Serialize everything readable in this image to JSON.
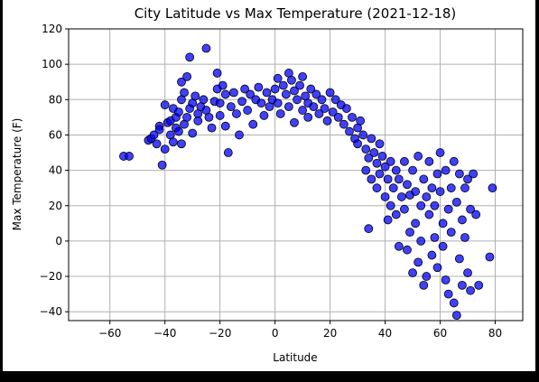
{
  "chart_data": {
    "type": "scatter",
    "title": "City Latitude vs Max Temperature  (2021-12-18)",
    "xlabel": "Latitude",
    "ylabel": "Max Temperature (F)",
    "xlim": [
      -75,
      90
    ],
    "ylim": [
      -45,
      120
    ],
    "xticks": [
      -60,
      -40,
      -20,
      0,
      20,
      40,
      60,
      80
    ],
    "yticks": [
      -40,
      -20,
      0,
      20,
      40,
      60,
      80,
      100,
      120
    ],
    "grid": true,
    "marker_color": "#0000ff",
    "edge_color": "#000000",
    "series": [
      {
        "points": [
          [
            -55,
            48
          ],
          [
            -53,
            48
          ],
          [
            -46,
            57
          ],
          [
            -45,
            58
          ],
          [
            -44,
            60
          ],
          [
            -43,
            55
          ],
          [
            -42,
            65
          ],
          [
            -42,
            63
          ],
          [
            -41,
            43
          ],
          [
            -40,
            52
          ],
          [
            -40,
            77
          ],
          [
            -39,
            67
          ],
          [
            -38,
            60
          ],
          [
            -38,
            68
          ],
          [
            -37,
            75
          ],
          [
            -37,
            56
          ],
          [
            -36,
            64
          ],
          [
            -36,
            70
          ],
          [
            -35,
            73
          ],
          [
            -35,
            62
          ],
          [
            -34,
            55
          ],
          [
            -34,
            80
          ],
          [
            -34,
            90
          ],
          [
            -33,
            66
          ],
          [
            -33,
            84
          ],
          [
            -32,
            93
          ],
          [
            -32,
            70
          ],
          [
            -31,
            104
          ],
          [
            -31,
            75
          ],
          [
            -30,
            61
          ],
          [
            -30,
            78
          ],
          [
            -29,
            82
          ],
          [
            -28,
            72
          ],
          [
            -28,
            68
          ],
          [
            -27,
            76
          ],
          [
            -26,
            80
          ],
          [
            -25,
            109
          ],
          [
            -25,
            74
          ],
          [
            -24,
            70
          ],
          [
            -23,
            64
          ],
          [
            -22,
            79
          ],
          [
            -21,
            95
          ],
          [
            -21,
            86
          ],
          [
            -20,
            78
          ],
          [
            -20,
            71
          ],
          [
            -19,
            88
          ],
          [
            -18,
            83
          ],
          [
            -18,
            65
          ],
          [
            -17,
            50
          ],
          [
            -16,
            76
          ],
          [
            -15,
            84
          ],
          [
            -14,
            72
          ],
          [
            -13,
            60
          ],
          [
            -12,
            79
          ],
          [
            -11,
            86
          ],
          [
            -10,
            74
          ],
          [
            -9,
            83
          ],
          [
            -8,
            66
          ],
          [
            -7,
            80
          ],
          [
            -6,
            87
          ],
          [
            -5,
            78
          ],
          [
            -4,
            71
          ],
          [
            -3,
            84
          ],
          [
            -2,
            76
          ],
          [
            -1,
            80
          ],
          [
            0,
            86
          ],
          [
            1,
            92
          ],
          [
            1,
            78
          ],
          [
            2,
            72
          ],
          [
            3,
            88
          ],
          [
            4,
            83
          ],
          [
            5,
            95
          ],
          [
            5,
            76
          ],
          [
            6,
            91
          ],
          [
            7,
            85
          ],
          [
            7,
            67
          ],
          [
            8,
            80
          ],
          [
            9,
            88
          ],
          [
            10,
            74
          ],
          [
            10,
            93
          ],
          [
            11,
            82
          ],
          [
            12,
            78
          ],
          [
            12,
            70
          ],
          [
            13,
            86
          ],
          [
            14,
            76
          ],
          [
            15,
            83
          ],
          [
            16,
            72
          ],
          [
            17,
            80
          ],
          [
            18,
            75
          ],
          [
            19,
            68
          ],
          [
            20,
            84
          ],
          [
            21,
            73
          ],
          [
            22,
            80
          ],
          [
            23,
            70
          ],
          [
            24,
            77
          ],
          [
            25,
            66
          ],
          [
            26,
            75
          ],
          [
            27,
            62
          ],
          [
            28,
            70
          ],
          [
            29,
            58
          ],
          [
            30,
            64
          ],
          [
            30,
            55
          ],
          [
            31,
            68
          ],
          [
            32,
            60
          ],
          [
            33,
            52
          ],
          [
            33,
            40
          ],
          [
            34,
            7
          ],
          [
            34,
            47
          ],
          [
            35,
            58
          ],
          [
            35,
            35
          ],
          [
            36,
            50
          ],
          [
            37,
            44
          ],
          [
            37,
            30
          ],
          [
            38,
            55
          ],
          [
            38,
            38
          ],
          [
            39,
            48
          ],
          [
            40,
            25
          ],
          [
            40,
            42
          ],
          [
            41,
            12
          ],
          [
            41,
            35
          ],
          [
            42,
            45
          ],
          [
            42,
            20
          ],
          [
            43,
            30
          ],
          [
            44,
            40
          ],
          [
            44,
            15
          ],
          [
            45,
            35
          ],
          [
            45,
            -3
          ],
          [
            46,
            25
          ],
          [
            47,
            45
          ],
          [
            47,
            18
          ],
          [
            48,
            32
          ],
          [
            48,
            -5
          ],
          [
            49,
            5
          ],
          [
            49,
            26
          ],
          [
            50,
            40
          ],
          [
            50,
            -18
          ],
          [
            51,
            10
          ],
          [
            51,
            28
          ],
          [
            52,
            48
          ],
          [
            52,
            -12
          ],
          [
            53,
            20
          ],
          [
            53,
            0
          ],
          [
            54,
            35
          ],
          [
            54,
            -25
          ],
          [
            55,
            25
          ],
          [
            55,
            -20
          ],
          [
            56,
            45
          ],
          [
            56,
            15
          ],
          [
            57,
            30
          ],
          [
            57,
            -8
          ],
          [
            58,
            2
          ],
          [
            58,
            20
          ],
          [
            59,
            38
          ],
          [
            59,
            -15
          ],
          [
            60,
            50
          ],
          [
            60,
            28
          ],
          [
            61,
            -3
          ],
          [
            61,
            10
          ],
          [
            62,
            40
          ],
          [
            62,
            -22
          ],
          [
            63,
            18
          ],
          [
            63,
            -30
          ],
          [
            64,
            30
          ],
          [
            64,
            5
          ],
          [
            65,
            -35
          ],
          [
            65,
            45
          ],
          [
            66,
            -42
          ],
          [
            66,
            22
          ],
          [
            67,
            38
          ],
          [
            67,
            -10
          ],
          [
            68,
            12
          ],
          [
            68,
            -25
          ],
          [
            69,
            30
          ],
          [
            69,
            2
          ],
          [
            70,
            35
          ],
          [
            70,
            -18
          ],
          [
            71,
            18
          ],
          [
            71,
            -28
          ],
          [
            72,
            38
          ],
          [
            73,
            15
          ],
          [
            74,
            -25
          ],
          [
            78,
            -9
          ],
          [
            79,
            30
          ]
        ]
      }
    ]
  }
}
